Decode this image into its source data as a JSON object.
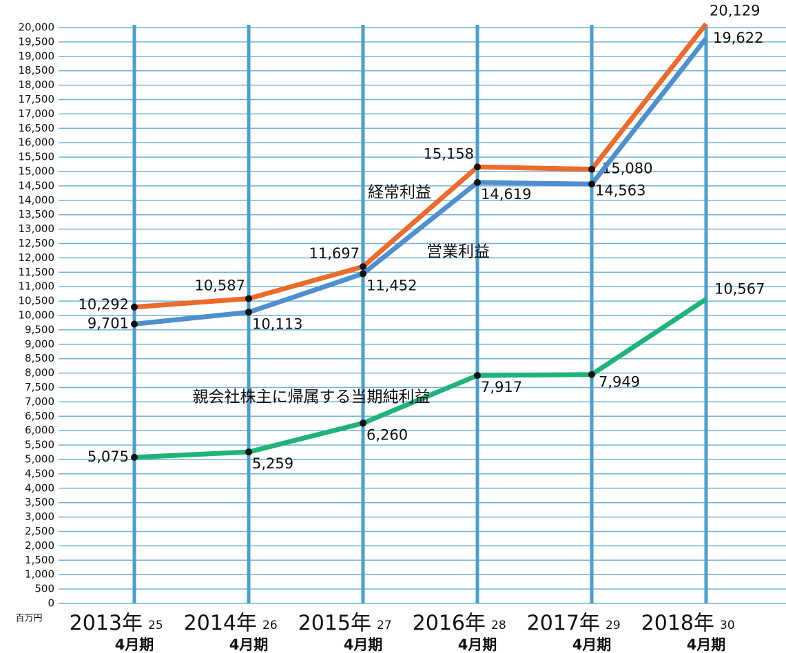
{
  "chart_data": {
    "type": "line",
    "y_unit": "百万円",
    "categories": [
      "2013年",
      "2014年",
      "2015年",
      "2016年",
      "2017年",
      "2018年"
    ],
    "category_sublabels": [
      "25",
      "26",
      "27",
      "28",
      "29",
      "30"
    ],
    "category_periods": [
      "4月期",
      "4月期",
      "4月期",
      "4月期",
      "4月期",
      "4月期"
    ],
    "series": [
      {
        "name": "経常利益",
        "color": "#ee6a2a",
        "values": [
          10292,
          10587,
          11697,
          15158,
          15080,
          20129
        ],
        "value_labels": [
          "10,292",
          "10,587",
          "11,697",
          "15,158",
          "15,080",
          "20,129"
        ]
      },
      {
        "name": "営業利益",
        "color": "#4f8fcf",
        "values": [
          9701,
          10113,
          11452,
          14619,
          14563,
          19622
        ],
        "value_labels": [
          "9,701",
          "10,113",
          "11,452",
          "14,619",
          "14,563",
          "19,622"
        ]
      },
      {
        "name": "親会社株主に帰属する当期純利益",
        "color": "#1fb37a",
        "values": [
          5075,
          5259,
          6260,
          7917,
          7949,
          10567
        ],
        "value_labels": [
          "5,075",
          "5,259",
          "6,260",
          "7,917",
          "7,949",
          "10,567"
        ]
      }
    ],
    "ylim": [
      0,
      20000
    ],
    "yticks": [
      0,
      500,
      {
        "value": 1000,
        "label": "1,000"
      },
      {
        "value": 1500,
        "label": "1,500"
      },
      {
        "value": 2000,
        "label": "2,000"
      },
      {
        "value": 2500,
        "label": "2,500"
      },
      {
        "value": 3000,
        "label": "3,000"
      },
      {
        "value": 3500,
        "label": "3,500"
      },
      {
        "value": 4000,
        "label": "4,000"
      },
      {
        "value": 4500,
        "label": "4,500"
      },
      {
        "value": 5000,
        "label": "5,000"
      },
      {
        "value": 5500,
        "label": "5,500"
      },
      {
        "value": 6000,
        "label": "6,000"
      },
      {
        "value": 6500,
        "label": "6,500"
      },
      {
        "value": 7000,
        "label": "7,000"
      },
      {
        "value": 7500,
        "label": "7,500"
      },
      {
        "value": 8000,
        "label": "8,000"
      },
      {
        "value": 8500,
        "label": "8,500"
      },
      {
        "value": 9000,
        "label": "9,000"
      },
      {
        "value": 9500,
        "label": "9,500"
      },
      {
        "value": 10000,
        "label": "10,000"
      },
      {
        "value": 10500,
        "label": "10,500"
      },
      {
        "value": 11000,
        "label": "11,000"
      },
      {
        "value": 11500,
        "label": "11,500"
      },
      {
        "value": 12000,
        "label": "12,000"
      },
      {
        "value": 12500,
        "label": "12,500"
      },
      {
        "value": 13000,
        "label": "13,000"
      },
      {
        "value": 13500,
        "label": "13,500"
      },
      {
        "value": 14000,
        "label": "14,000"
      },
      {
        "value": 14500,
        "label": "14,500"
      },
      {
        "value": 15000,
        "label": "15,000"
      },
      {
        "value": 15500,
        "label": "15,500"
      },
      {
        "value": 16000,
        "label": "16,000"
      },
      {
        "value": 16500,
        "label": "16,500"
      },
      {
        "value": 17000,
        "label": "17,000"
      },
      {
        "value": 17500,
        "label": "17,500"
      },
      {
        "value": 18000,
        "label": "18,000"
      },
      {
        "value": 18500,
        "label": "18,500"
      },
      {
        "value": 19000,
        "label": "19,000"
      },
      {
        "value": 19500,
        "label": "19,500"
      },
      {
        "value": 20000,
        "label": "20,000"
      }
    ],
    "grid": true
  }
}
